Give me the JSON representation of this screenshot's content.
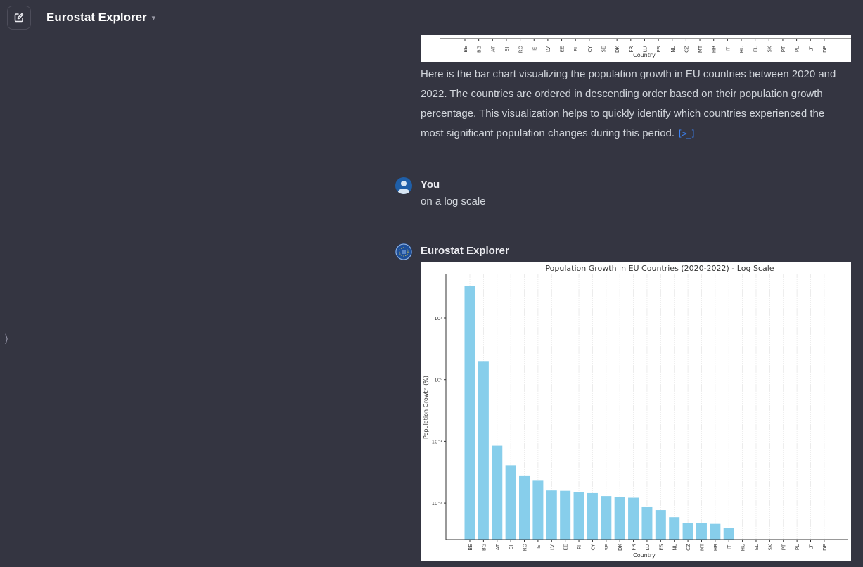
{
  "header": {
    "title": "Eurostat Explorer",
    "new_chat_icon": "pencil-square-icon",
    "chevron_icon": "chevron-down-icon"
  },
  "sidebar": {
    "toggle_icon": "chevron-right-icon",
    "toggle_glyph": "⟩"
  },
  "messages": [
    {
      "author": "Eurostat Explorer",
      "text": "Here is the bar chart visualizing the population growth in EU countries between 2020 and 2022. The countries are ordered in descending order based on their population growth percentage. This visualization helps to quickly identify which countries experienced the most significant population changes during this period.",
      "code_link_glyph": "[>_]"
    },
    {
      "author": "You",
      "text": "on a log scale"
    },
    {
      "author": "Eurostat Explorer"
    }
  ],
  "colors": {
    "bar": "#87ceeb",
    "background": "#343541",
    "link": "#3b82f6"
  },
  "chart_data": [
    {
      "type": "bar",
      "title": "",
      "xlabel": "Country",
      "ylabel": "",
      "categories": [
        "BE",
        "BG",
        "AT",
        "SI",
        "RO",
        "IE",
        "LV",
        "EE",
        "FI",
        "CY",
        "SE",
        "DK",
        "FR",
        "LU",
        "ES",
        "NL",
        "CZ",
        "MT",
        "HR",
        "IT",
        "HU",
        "EL",
        "SK",
        "PT",
        "PL",
        "LT",
        "DE"
      ],
      "note_partial": true
    },
    {
      "type": "bar",
      "title": "Population Growth in EU Countries (2020-2022) - Log Scale",
      "xlabel": "Country",
      "ylabel": "Population Growth (%)",
      "yscale": "log",
      "ylim": [
        0.0026,
        51
      ],
      "yticks": [
        {
          "value": 10,
          "label": "10¹"
        },
        {
          "value": 1,
          "label": "10⁰"
        },
        {
          "value": 0.1,
          "label": "10⁻¹"
        },
        {
          "value": 0.01,
          "label": "10⁻²"
        }
      ],
      "grid": "vertical",
      "categories": [
        "BE",
        "BG",
        "AT",
        "SI",
        "RO",
        "IE",
        "LV",
        "EE",
        "FI",
        "CY",
        "SE",
        "DK",
        "FR",
        "LU",
        "ES",
        "NL",
        "CZ",
        "MT",
        "HR",
        "IT",
        "HU",
        "EL",
        "SK",
        "PT",
        "PL",
        "LT",
        "DE"
      ],
      "values": [
        33,
        2.0,
        0.085,
        0.041,
        0.028,
        0.023,
        0.016,
        0.0158,
        0.015,
        0.0145,
        0.013,
        0.0127,
        0.0122,
        0.0088,
        0.0077,
        0.0059,
        0.0048,
        0.0048,
        0.0046,
        0.004,
        null,
        null,
        null,
        null,
        null,
        null,
        null
      ]
    }
  ]
}
